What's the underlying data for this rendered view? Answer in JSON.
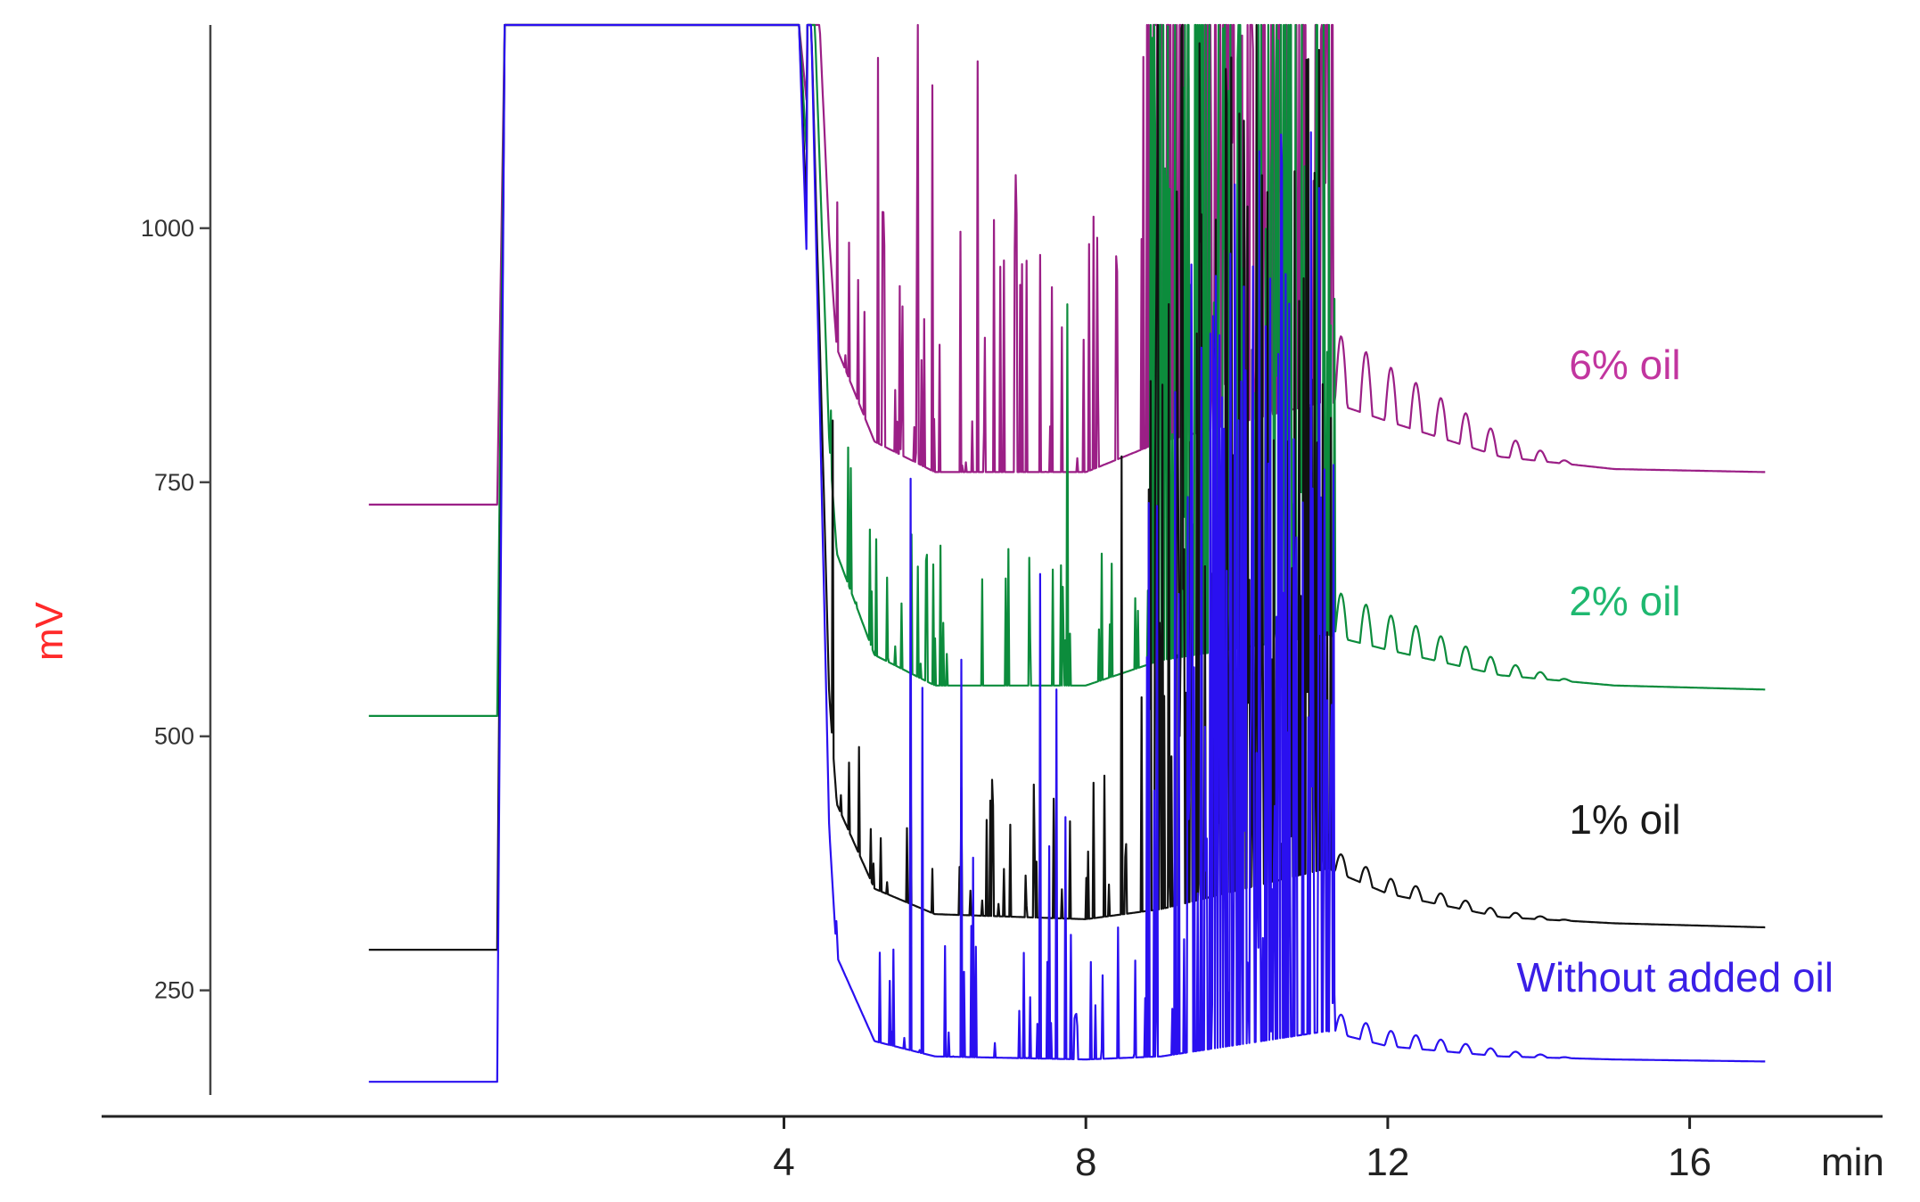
{
  "chart_data": {
    "type": "line",
    "ylabel": "mV",
    "xunit": "min",
    "xlim": [
      -3.6,
      17.8
    ],
    "ylim": [
      140,
      1200
    ],
    "yticks": [
      250,
      500,
      750,
      1000
    ],
    "xticks": [
      4,
      8,
      12,
      16
    ],
    "grid": false,
    "series": [
      {
        "name": "6% oil",
        "color": "#9b1f86",
        "label_color": "#c2359f",
        "initial": 728,
        "baseline_end": 760,
        "points": [
          [
            -1.5,
            728
          ],
          [
            0.2,
            728
          ],
          [
            1.0,
            1200
          ],
          [
            4.2,
            1200
          ],
          [
            4.6,
            900
          ],
          [
            5.2,
            790
          ],
          [
            6.0,
            760
          ],
          [
            8.0,
            760
          ],
          [
            9.0,
            790
          ],
          [
            11.2,
            830
          ],
          [
            12.0,
            810
          ],
          [
            13.5,
            775
          ],
          [
            15.0,
            763
          ],
          [
            17.0,
            760
          ]
        ]
      },
      {
        "name": "2% oil",
        "color": "#0c8c3c",
        "label_color": "#1fb870",
        "initial": 520,
        "baseline_end": 546,
        "points": [
          [
            -1.5,
            520
          ],
          [
            0.2,
            520
          ],
          [
            1.0,
            1200
          ],
          [
            4.2,
            1200
          ],
          [
            4.6,
            700
          ],
          [
            5.2,
            580
          ],
          [
            6.0,
            550
          ],
          [
            8.0,
            550
          ],
          [
            9.0,
            575
          ],
          [
            11.2,
            600
          ],
          [
            12.0,
            585
          ],
          [
            13.5,
            560
          ],
          [
            15.0,
            550
          ],
          [
            17.0,
            546
          ]
        ]
      },
      {
        "name": "1% oil",
        "color": "#111111",
        "label_color": "#1a1a1a",
        "initial": 290,
        "baseline_end": 312,
        "points": [
          [
            -1.5,
            290
          ],
          [
            0.2,
            290
          ],
          [
            1.0,
            1200
          ],
          [
            4.2,
            1200
          ],
          [
            4.6,
            450
          ],
          [
            5.2,
            350
          ],
          [
            6.0,
            325
          ],
          [
            8.0,
            320
          ],
          [
            9.0,
            330
          ],
          [
            11.2,
            370
          ],
          [
            12.0,
            345
          ],
          [
            13.5,
            322
          ],
          [
            15.0,
            316
          ],
          [
            17.0,
            312
          ]
        ]
      },
      {
        "name": "Without added oil",
        "color": "#2a10f0",
        "label_color": "#3a1fe6",
        "initial": 160,
        "baseline_end": 180,
        "points": [
          [
            -1.5,
            160
          ],
          [
            0.2,
            160
          ],
          [
            1.0,
            1200
          ],
          [
            4.2,
            1200
          ],
          [
            4.6,
            300
          ],
          [
            5.2,
            200
          ],
          [
            6.0,
            185
          ],
          [
            8.0,
            182
          ],
          [
            9.0,
            185
          ],
          [
            11.2,
            210
          ],
          [
            12.0,
            195
          ],
          [
            13.5,
            185
          ],
          [
            15.0,
            182
          ],
          [
            17.0,
            180
          ]
        ]
      }
    ]
  }
}
